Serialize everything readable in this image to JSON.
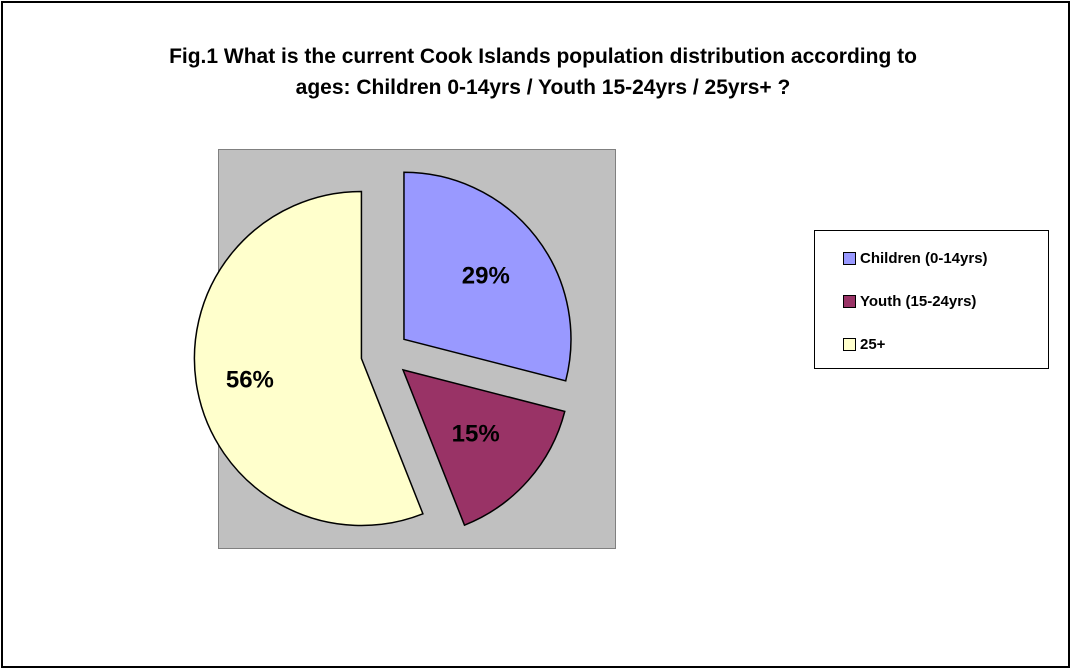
{
  "chart_data": {
    "type": "pie",
    "title": "Fig.1 What is the current Cook Islands population distribution according to ages: Children 0-14yrs / Youth 15-24yrs / 25yrs+ ?",
    "categories": [
      "Children (0-14yrs)",
      "Youth (15-24yrs)",
      "25+"
    ],
    "values": [
      29,
      15,
      56
    ],
    "data_labels": [
      "29%",
      "15%",
      "56%"
    ],
    "colors": [
      "#9999ff",
      "#993366",
      "#ffffcc"
    ],
    "exploded": true,
    "legend_position": "right"
  }
}
